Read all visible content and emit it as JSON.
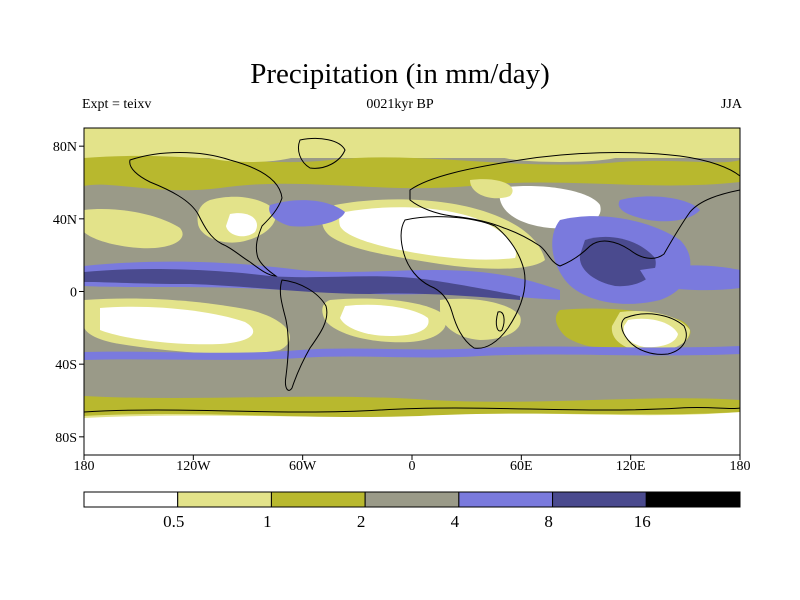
{
  "title": "Precipitation (in mm/day)",
  "subtitle_left": "Expt = teixv",
  "subtitle_center": "0021kyr BP",
  "subtitle_right": "JJA",
  "map": {
    "projection": "cylindrical equidistant",
    "lon_range": [
      -180,
      180
    ],
    "lat_range": [
      -90,
      90
    ],
    "lat_ticks": [
      {
        "value": 80,
        "label": "80N"
      },
      {
        "value": 40,
        "label": "40N"
      },
      {
        "value": 0,
        "label": "0"
      },
      {
        "value": -40,
        "label": "40S"
      },
      {
        "value": -80,
        "label": "80S"
      }
    ],
    "lon_ticks": [
      {
        "value": -180,
        "label": "180"
      },
      {
        "value": -120,
        "label": "120W"
      },
      {
        "value": -60,
        "label": "60W"
      },
      {
        "value": 0,
        "label": "0"
      },
      {
        "value": 60,
        "label": "60E"
      },
      {
        "value": 120,
        "label": "120E"
      },
      {
        "value": 180,
        "label": "180"
      }
    ]
  },
  "colorbar": {
    "levels": [
      "0.5",
      "1",
      "2",
      "4",
      "8",
      "16"
    ],
    "colors": [
      "#ffffff",
      "#e3e38a",
      "#b8b82e",
      "#9a9a88",
      "#7a7add",
      "#4a4a8e",
      "#000000"
    ]
  }
}
